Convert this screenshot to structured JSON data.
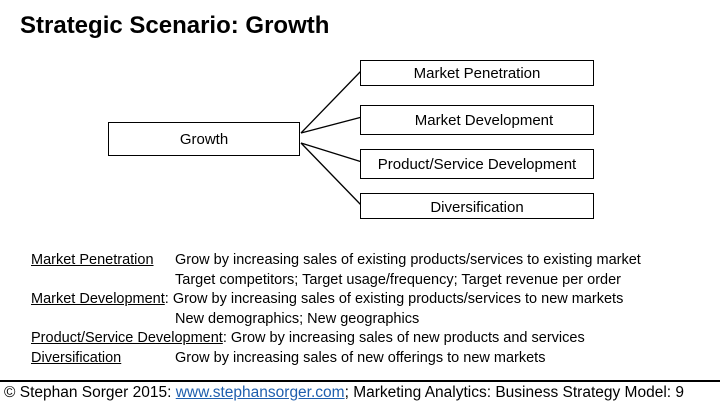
{
  "title": "Strategic Scenario: Growth",
  "diagram": {
    "root": "Growth",
    "branches": [
      "Market Penetration",
      "Market Development",
      "Product/Service Development",
      "Diversification"
    ]
  },
  "legend": [
    {
      "term": "Market Penetration",
      "desc": "Grow by increasing sales of existing products/services to existing market",
      "detail": "Target competitors; Target usage/frequency; Target revenue per order"
    },
    {
      "term": "Market Development",
      "desc": ": Grow by increasing sales of existing products/services to new markets",
      "detail": "New demographics; New geographics"
    },
    {
      "term": "Product/Service Development",
      "desc": ": Grow by increasing sales of new products and services"
    },
    {
      "term": "Diversification",
      "desc": "Grow by increasing sales of new offerings to new markets"
    }
  ],
  "footer": {
    "prefix": "© Stephan Sorger 2015: ",
    "link": "www.stephansorger.com",
    "suffix": "; Marketing Analytics: Business Strategy Model: 9"
  }
}
